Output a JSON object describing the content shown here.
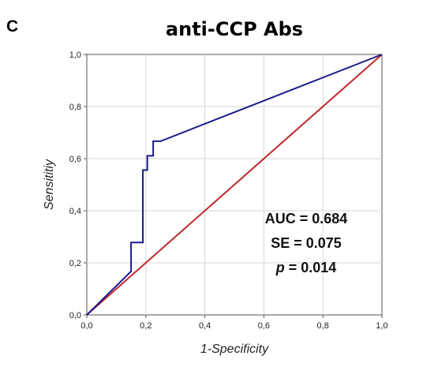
{
  "panel_label": "C",
  "chart_data": {
    "type": "line",
    "title": "anti-CCP Abs",
    "xlabel": "1-Specificity",
    "ylabel": "Sensititiy",
    "xlim": [
      0,
      1
    ],
    "ylim": [
      0,
      1
    ],
    "x_ticks": [
      "0,0",
      "0,2",
      "0,4",
      "0,6",
      "0,8",
      "1,0"
    ],
    "y_ticks": [
      "0,0",
      "0,2",
      "0,4",
      "0,6",
      "0,8",
      "1,0"
    ],
    "grid": true,
    "series": [
      {
        "color": "#1a1a8c",
        "points": [
          [
            0,
            0
          ],
          [
            0.15,
            0.167
          ],
          [
            0.15,
            0.278
          ],
          [
            0.19,
            0.278
          ],
          [
            0.19,
            0.556
          ],
          [
            0.205,
            0.556
          ],
          [
            0.205,
            0.611
          ],
          [
            0.225,
            0.611
          ],
          [
            0.225,
            0.667
          ],
          [
            0.25,
            0.667
          ],
          [
            1,
            1
          ]
        ]
      },
      {
        "color": "#c0282b",
        "points": [
          [
            0,
            0
          ],
          [
            1,
            1
          ]
        ]
      }
    ],
    "annotations": {
      "auc": "AUC = 0.684",
      "se": "SE = 0.075",
      "p_label": "p",
      "p_value": " = 0.014"
    }
  }
}
